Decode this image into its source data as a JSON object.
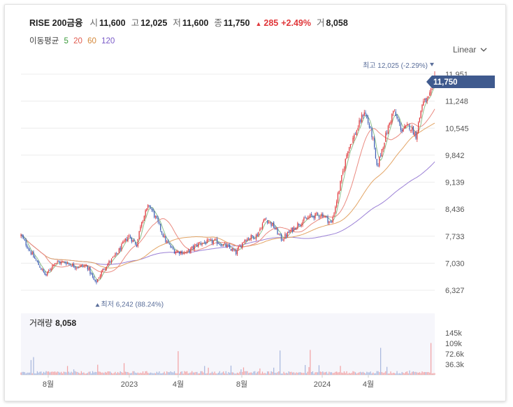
{
  "header": {
    "name": "RISE 200금융",
    "open_label": "시",
    "open": "11,600",
    "high_label": "고",
    "high": "12,025",
    "low_label": "저",
    "low": "11,600",
    "close_label": "종",
    "close": "11,750",
    "change": "285",
    "change_pct": "+2.49%",
    "volume_label": "거",
    "volume": "8,058"
  },
  "moving_avg": {
    "label": "이동평균",
    "periods": [
      {
        "label": "5",
        "color": "#3a9a3a"
      },
      {
        "label": "20",
        "color": "#e05a4e"
      },
      {
        "label": "60",
        "color": "#d4883a"
      },
      {
        "label": "120",
        "color": "#7a5ac8"
      }
    ]
  },
  "scale_selector": {
    "label": "Linear",
    "icon": "chevron-down-icon"
  },
  "current_price_tag": "11,750",
  "volume_panel": {
    "label": "거래량",
    "value": "8,058"
  },
  "colors": {
    "up": "#e0373a",
    "down": "#3f5fb4",
    "tag": "#3f5a8e",
    "grid": "#ececec"
  },
  "chart_data": {
    "type": "candlestick",
    "y_ticks": [
      "11,951",
      "11,248",
      "10,545",
      "9,842",
      "9,139",
      "8,436",
      "7,733",
      "7,030",
      "6,327"
    ],
    "ylim": [
      6327,
      11951
    ],
    "x_ticks": [
      "8월",
      "2023",
      "4월",
      "8월",
      "2024",
      "4월"
    ],
    "high_annotation": {
      "text": "최고 12,025 (-2.29%)",
      "value": 12025
    },
    "low_annotation": {
      "text": "최저 6,242 (88.24%)",
      "value": 6242
    },
    "volume_ticks": [
      "145k",
      "109k",
      "72.6k",
      "36.3k"
    ],
    "volume_ylim": [
      0,
      145000
    ],
    "close_path": [
      {
        "t": 0,
        "v": 7750
      },
      {
        "t": 0.03,
        "v": 7200
      },
      {
        "t": 0.06,
        "v": 6700
      },
      {
        "t": 0.08,
        "v": 7050
      },
      {
        "t": 0.11,
        "v": 7050
      },
      {
        "t": 0.13,
        "v": 6950
      },
      {
        "t": 0.16,
        "v": 6950
      },
      {
        "t": 0.18,
        "v": 6500
      },
      {
        "t": 0.2,
        "v": 6900
      },
      {
        "t": 0.23,
        "v": 7250
      },
      {
        "t": 0.26,
        "v": 7750
      },
      {
        "t": 0.28,
        "v": 7500
      },
      {
        "t": 0.29,
        "v": 8100
      },
      {
        "t": 0.31,
        "v": 8550
      },
      {
        "t": 0.33,
        "v": 8100
      },
      {
        "t": 0.35,
        "v": 7600
      },
      {
        "t": 0.37,
        "v": 7350
      },
      {
        "t": 0.4,
        "v": 7300
      },
      {
        "t": 0.43,
        "v": 7550
      },
      {
        "t": 0.47,
        "v": 7600
      },
      {
        "t": 0.5,
        "v": 7450
      },
      {
        "t": 0.52,
        "v": 7300
      },
      {
        "t": 0.54,
        "v": 7650
      },
      {
        "t": 0.57,
        "v": 7750
      },
      {
        "t": 0.59,
        "v": 8200
      },
      {
        "t": 0.61,
        "v": 8000
      },
      {
        "t": 0.63,
        "v": 7650
      },
      {
        "t": 0.65,
        "v": 7850
      },
      {
        "t": 0.67,
        "v": 8050
      },
      {
        "t": 0.7,
        "v": 8250
      },
      {
        "t": 0.73,
        "v": 8300
      },
      {
        "t": 0.75,
        "v": 8050
      },
      {
        "t": 0.77,
        "v": 9000
      },
      {
        "t": 0.79,
        "v": 10000
      },
      {
        "t": 0.81,
        "v": 10450
      },
      {
        "t": 0.83,
        "v": 11000
      },
      {
        "t": 0.85,
        "v": 10300
      },
      {
        "t": 0.86,
        "v": 9500
      },
      {
        "t": 0.88,
        "v": 10300
      },
      {
        "t": 0.9,
        "v": 11000
      },
      {
        "t": 0.92,
        "v": 10500
      },
      {
        "t": 0.94,
        "v": 10600
      },
      {
        "t": 0.955,
        "v": 10350
      },
      {
        "t": 0.97,
        "v": 11200
      },
      {
        "t": 0.985,
        "v": 11300
      },
      {
        "t": 1.0,
        "v": 11750
      }
    ]
  }
}
